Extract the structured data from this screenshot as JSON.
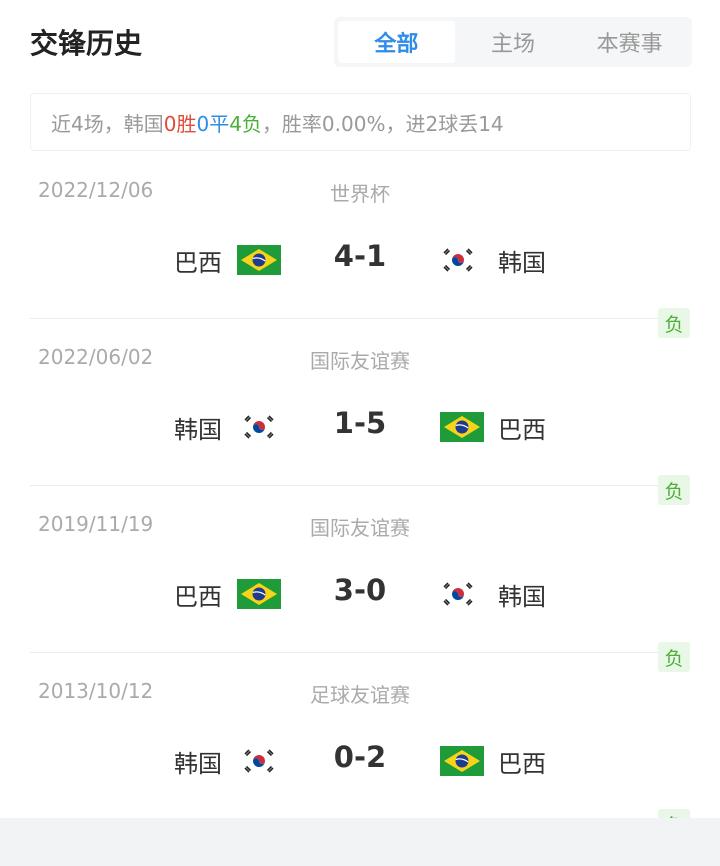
{
  "header": {
    "title": "交锋历史",
    "tabs": [
      {
        "label": "全部",
        "active": true
      },
      {
        "label": "主场"
      },
      {
        "label": "本赛事"
      }
    ]
  },
  "summary": {
    "prefix": "近4场，韩国",
    "wins": "0胜",
    "draws": "0平",
    "losses": "4负",
    "suffix": "，胜率0.00%，进2球丢14"
  },
  "colors": {
    "accent": "#2f8ce8",
    "win": "#e04b3a",
    "draw": "#2f8ce8",
    "loss": "#4caf3a"
  },
  "matches": [
    {
      "date": "2022/12/06",
      "competition": "世界杯",
      "home": "巴西",
      "home_flag": "brazil",
      "score": "4-1",
      "away": "韩国",
      "away_flag": "korea",
      "result": "负"
    },
    {
      "date": "2022/06/02",
      "competition": "国际友谊赛",
      "home": "韩国",
      "home_flag": "korea",
      "score": "1-5",
      "away": "巴西",
      "away_flag": "brazil",
      "result": "负"
    },
    {
      "date": "2019/11/19",
      "competition": "国际友谊赛",
      "home": "巴西",
      "home_flag": "brazil",
      "score": "3-0",
      "away": "韩国",
      "away_flag": "korea",
      "result": "负"
    },
    {
      "date": "2013/10/12",
      "competition": "足球友谊赛",
      "home": "韩国",
      "home_flag": "korea",
      "score": "0-2",
      "away": "巴西",
      "away_flag": "brazil",
      "result": "负"
    }
  ]
}
